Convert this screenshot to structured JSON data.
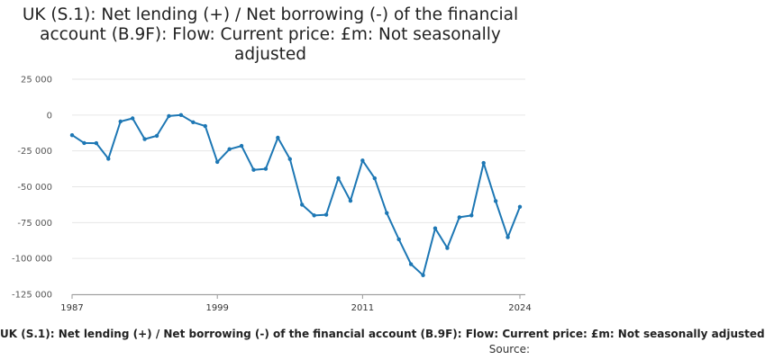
{
  "chart_data": {
    "type": "line",
    "title": "UK (S.1): Net lending (+) / Net borrowing (-) of the financial account (B.9F): Flow: Current price: £m: Not seasonally adjusted",
    "xlabel": "UK (S.1): Net lending (+) / Net borrowing (-) of the financial account (B.9F): Flow: Current price: £m: Not seasonally adjusted",
    "ylabel": "",
    "source": "Source:",
    "xlim": [
      1987,
      2024
    ],
    "ylim": [
      -125000,
      25000
    ],
    "x_ticks": [
      1987,
      1999,
      2011,
      2024
    ],
    "y_ticks": [
      25000,
      0,
      -25000,
      -50000,
      -75000,
      -100000,
      -125000
    ],
    "y_tick_labels": [
      "25 000",
      "0",
      "-25 000",
      "-50 000",
      "-75 000",
      "-100 000",
      "-125 000"
    ],
    "grid": "horizontal",
    "line_color": "#1d77b4",
    "x": [
      1987,
      1988,
      1989,
      1990,
      1991,
      1992,
      1993,
      1994,
      1995,
      1996,
      1997,
      1998,
      1999,
      2000,
      2001,
      2002,
      2003,
      2004,
      2005,
      2006,
      2007,
      2008,
      2009,
      2010,
      2011,
      2012,
      2013,
      2014,
      2015,
      2016,
      2017,
      2018,
      2019,
      2020,
      2021,
      2022,
      2023,
      2024
    ],
    "values": [
      -14000,
      -19500,
      -19600,
      -30500,
      -4500,
      -2300,
      -16800,
      -14500,
      -700,
      0,
      -5000,
      -7700,
      -32700,
      -23800,
      -21500,
      -38200,
      -37500,
      -15800,
      -30700,
      -62500,
      -70000,
      -69500,
      -44000,
      -59800,
      -31700,
      -44100,
      -68300,
      -86700,
      -104000,
      -111700,
      -79000,
      -92700,
      -71300,
      -70000,
      -33400,
      -60000,
      -85200,
      -64000
    ]
  }
}
